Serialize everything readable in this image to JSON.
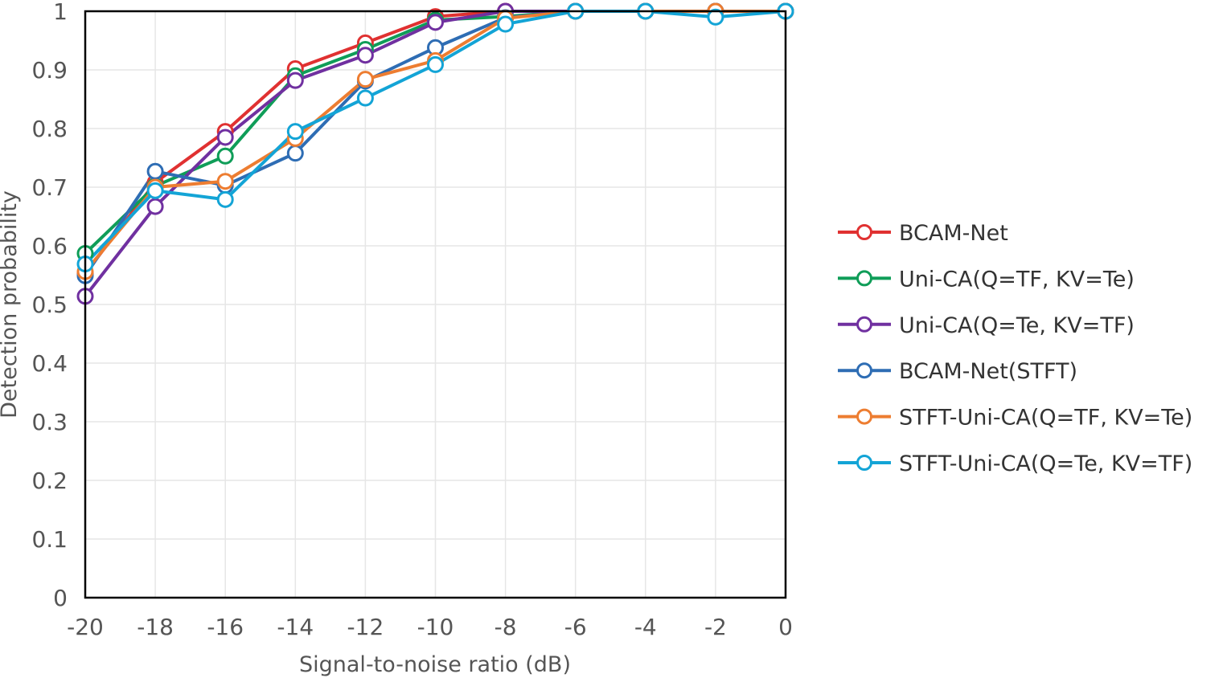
{
  "chart_data": {
    "type": "line",
    "title": "",
    "xlabel": "Signal-to-noise ratio (dB)",
    "ylabel": "Detection probability",
    "x": [
      -20,
      -18,
      -16,
      -14,
      -12,
      -10,
      -8,
      -6,
      -4,
      -2,
      0
    ],
    "x_tick_labels": [
      "-20",
      "-18",
      "-16",
      "-14",
      "-12",
      "-10",
      "-8",
      "-6",
      "-4",
      "-2",
      "0"
    ],
    "y_ticks": [
      0,
      0.1,
      0.2,
      0.3,
      0.4,
      0.5,
      0.6,
      0.7,
      0.8,
      0.9,
      1
    ],
    "y_tick_labels": [
      "0",
      "0.1",
      "0.2",
      "0.3",
      "0.4",
      "0.5",
      "0.6",
      "0.7",
      "0.8",
      "0.9",
      "1"
    ],
    "xlim": [
      -20,
      0
    ],
    "ylim": [
      0,
      1
    ],
    "grid": true,
    "legend_position": "right",
    "series": [
      {
        "name": "BCAM-Net",
        "color": "#e03131",
        "values": [
          0.553,
          0.708,
          0.795,
          0.902,
          0.946,
          0.991,
          1.0,
          1.0,
          1.0,
          1.0,
          1.0
        ]
      },
      {
        "name": "Uni-CA(Q=TF, KV=Te)",
        "color": "#0f9d58",
        "values": [
          0.587,
          0.702,
          0.753,
          0.89,
          0.935,
          0.985,
          0.991,
          1.0,
          1.0,
          1.0,
          1.0
        ]
      },
      {
        "name": "Uni-CA(Q=Te, KV=TF)",
        "color": "#7030a0",
        "values": [
          0.514,
          0.667,
          0.785,
          0.882,
          0.925,
          0.981,
          1.0,
          1.0,
          1.0,
          1.0,
          1.0
        ]
      },
      {
        "name": "BCAM-Net(STFT)",
        "color": "#2e6db4",
        "values": [
          0.549,
          0.727,
          0.703,
          0.758,
          0.881,
          0.938,
          0.989,
          1.0,
          1.0,
          1.0,
          1.0
        ]
      },
      {
        "name": "STFT-Uni-CA(Q=TF, KV=Te)",
        "color": "#ed7d31",
        "values": [
          0.556,
          0.7,
          0.71,
          0.783,
          0.884,
          0.916,
          0.988,
          1.0,
          1.0,
          1.0,
          1.0
        ]
      },
      {
        "name": "STFT-Uni-CA(Q=Te, KV=TF)",
        "color": "#13a4d6",
        "values": [
          0.569,
          0.694,
          0.679,
          0.795,
          0.852,
          0.909,
          0.978,
          1.0,
          1.0,
          0.99,
          1.0
        ]
      }
    ]
  }
}
